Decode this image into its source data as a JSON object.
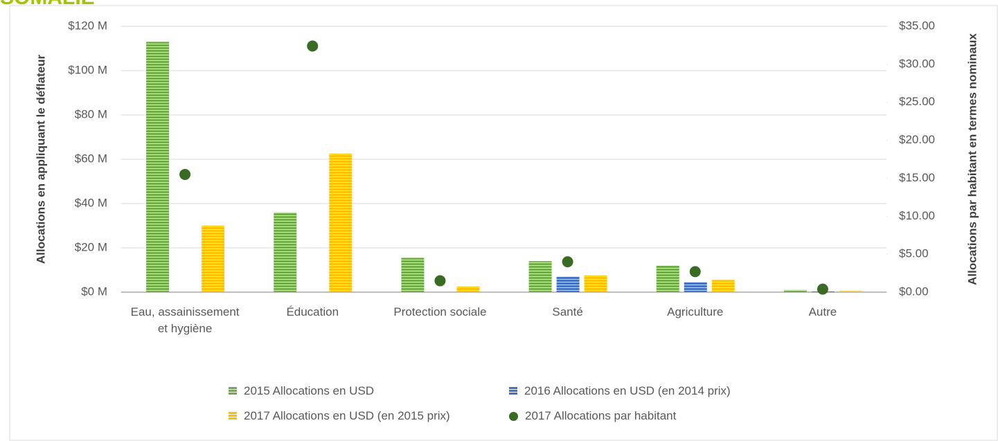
{
  "chart_data": {
    "type": "bar",
    "title": "SOMALIE",
    "y_label": "Allocations en appliquant le déflateur",
    "y2_label": "Allocations par habitant en termes nominaux",
    "categories": [
      "Eau, assainissement et hygiène",
      "Éducation",
      "Protection sociale",
      "Santé",
      "Agriculture",
      "Autre"
    ],
    "series": [
      {
        "name": "2015 Allocations en USD",
        "color": "#70ad47",
        "values": [
          113,
          36,
          15.5,
          14,
          12,
          1
        ]
      },
      {
        "name": "2016 Allocations en USD (en 2014 prix)",
        "color": "#4472c4",
        "values": [
          0,
          0,
          0,
          7,
          4.5,
          0.3
        ]
      },
      {
        "name": "2017 Allocations en USD (en 2015 prix)",
        "color": "#ffc000",
        "values": [
          30,
          62.5,
          2.5,
          7.5,
          5.5,
          0.5
        ]
      },
      {
        "name": "2017 Allocations par habitant",
        "color": "#3a6b24",
        "type": "scatter",
        "axis": "y2",
        "values": [
          15.5,
          32.4,
          1.5,
          4.0,
          2.7,
          0.4
        ]
      }
    ],
    "ylim": [
      0,
      120
    ],
    "yticks": [
      {
        "value": 0,
        "label": "$0 M"
      },
      {
        "value": 20,
        "label": "$20 M"
      },
      {
        "value": 40,
        "label": "$40 M"
      },
      {
        "value": 60,
        "label": "$60 M"
      },
      {
        "value": 80,
        "label": "$80 M"
      },
      {
        "value": 100,
        "label": "$100 M"
      },
      {
        "value": 120,
        "label": "$120 M"
      }
    ],
    "y2lim": [
      0,
      35
    ],
    "y2ticks": [
      {
        "value": 0,
        "label": "$0.00"
      },
      {
        "value": 5,
        "label": "$5.00"
      },
      {
        "value": 10,
        "label": "$10.00"
      },
      {
        "value": 15,
        "label": "$15.00"
      },
      {
        "value": 20,
        "label": "$20.00"
      },
      {
        "value": 25,
        "label": "$25.00"
      },
      {
        "value": 30,
        "label": "$30.00"
      },
      {
        "value": 35,
        "label": "$35.00"
      }
    ],
    "grid": true,
    "legend": "bottom"
  }
}
